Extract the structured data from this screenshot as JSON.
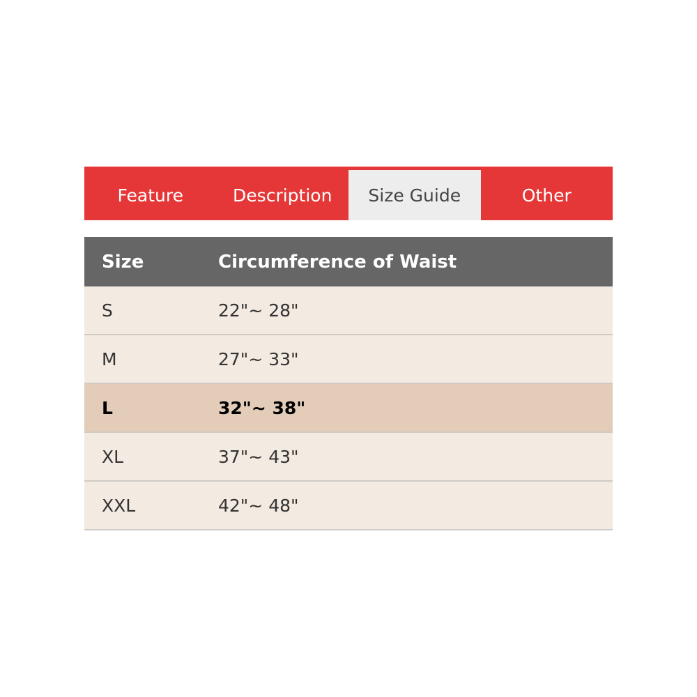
{
  "tabs": [
    {
      "label": "Feature",
      "active": false
    },
    {
      "label": "Description",
      "active": false
    },
    {
      "label": "Size Guide",
      "active": true
    },
    {
      "label": "Other",
      "active": false
    }
  ],
  "table": {
    "headers": [
      "Size",
      "Circumference of Waist"
    ],
    "rows": [
      {
        "size": "S",
        "waist": "22\"~ 28\""
      },
      {
        "size": "M",
        "waist": "27\"~ 33\""
      },
      {
        "size": "L",
        "waist": "32\"~ 38\"",
        "highlighted": true
      },
      {
        "size": "XL",
        "waist": "37\"~ 43\""
      },
      {
        "size": "XXL",
        "waist": "42\"~ 48\""
      }
    ]
  },
  "colors": {
    "accent": "#e53737",
    "header_bg": "#666666",
    "row_bg": "#f3eae1",
    "highlight_bg": "#e3cdb8",
    "active_tab_bg": "#ededed"
  }
}
